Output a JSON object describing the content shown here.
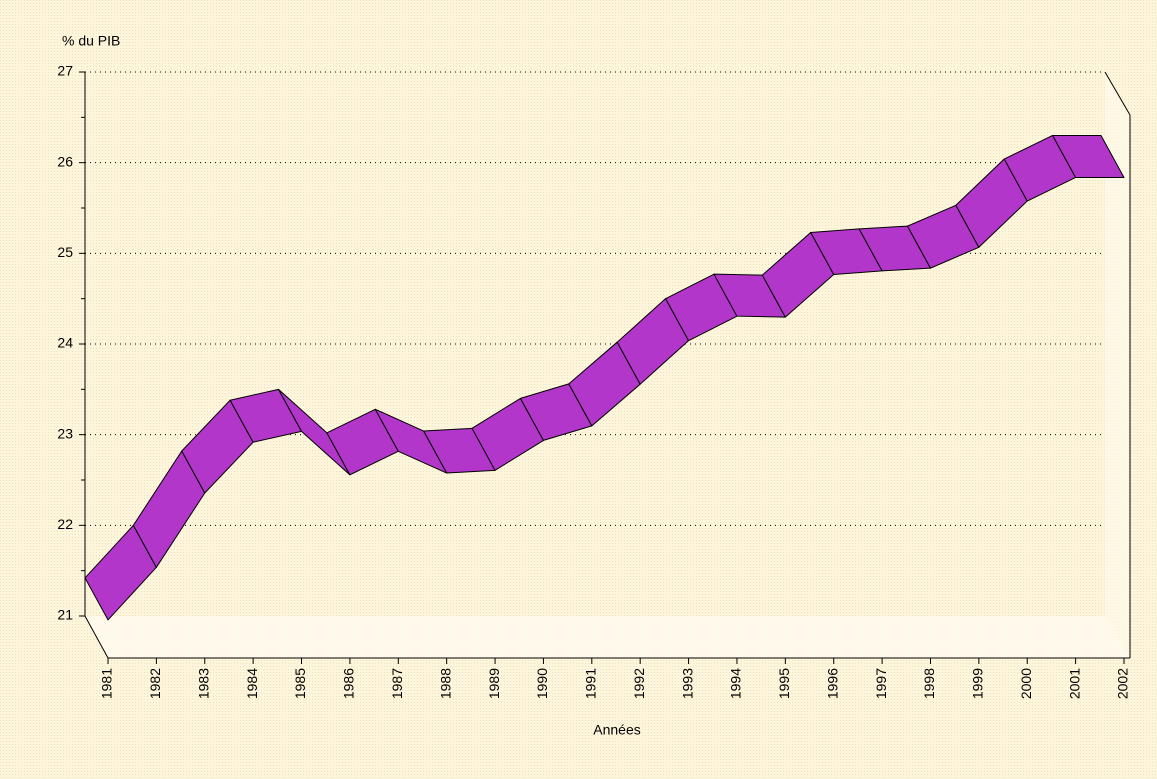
{
  "chart_data": {
    "type": "ribbon",
    "y_axis_label": "% du PIB",
    "x_axis_label": "Années",
    "categories": [
      "1981",
      "1982",
      "1983",
      "1984",
      "1985",
      "1986",
      "1987",
      "1988",
      "1989",
      "1990",
      "1991",
      "1992",
      "1993",
      "1994",
      "1995",
      "1996",
      "1997",
      "1998",
      "1999",
      "2000",
      "2001",
      "2002"
    ],
    "values": [
      21.42,
      22.0,
      22.82,
      23.38,
      23.5,
      23.02,
      23.28,
      23.04,
      23.07,
      23.4,
      23.56,
      24.02,
      24.5,
      24.77,
      24.76,
      25.23,
      25.27,
      25.3,
      25.53,
      26.04,
      26.3,
      26.3
    ],
    "color": "#b236c9",
    "ylim": [
      21,
      27
    ],
    "yticks": [
      21,
      22,
      23,
      24,
      25,
      26,
      27
    ],
    "grid": true
  }
}
